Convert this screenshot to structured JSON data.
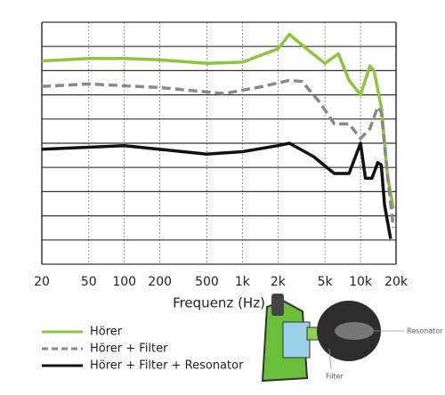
{
  "chart_data": {
    "type": "line",
    "x_label": "Frequenz (Hz)",
    "log_x": true,
    "xlim": [
      20,
      20000
    ],
    "xticks": [
      20,
      50,
      100,
      200,
      500,
      {
        "value": 1000,
        "label": "1k"
      },
      {
        "value": 2000,
        "label": "2k"
      },
      {
        "value": 5000,
        "label": "5k"
      },
      {
        "value": 10000,
        "label": "10k"
      },
      {
        "value": 20000,
        "label": "20k"
      }
    ],
    "ylim": [
      0,
      10
    ],
    "ygrid": [
      0,
      1,
      2,
      3,
      4,
      5,
      6,
      7,
      8,
      9,
      10
    ],
    "series": [
      {
        "name": "Hörer",
        "color": "#8cc63f",
        "dash": false,
        "x": [
          20,
          50,
          100,
          200,
          500,
          1000,
          2000,
          2500,
          3500,
          5000,
          6500,
          8000,
          10000,
          12000,
          13000,
          15000,
          17000,
          19000
        ],
        "values": [
          8.4,
          8.5,
          8.5,
          8.45,
          8.3,
          8.35,
          8.9,
          9.5,
          8.9,
          8.3,
          8.7,
          7.6,
          7.0,
          8.2,
          8.0,
          6.5,
          3.6,
          2.3
        ]
      },
      {
        "name": "Hörer + Filter",
        "color": "#8a8a8a",
        "dash": true,
        "x": [
          20,
          50,
          200,
          700,
          1500,
          2500,
          3200,
          4500,
          6000,
          8000,
          10000,
          12000,
          14000,
          15000,
          17000,
          19000
        ],
        "values": [
          7.35,
          7.45,
          7.3,
          7.05,
          7.35,
          7.6,
          7.55,
          6.7,
          5.8,
          5.8,
          5.2,
          5.6,
          6.5,
          6.3,
          3.6,
          1.5
        ]
      },
      {
        "name": "Hörer + Filter + Resonator",
        "color": "#111111",
        "dash": false,
        "x": [
          20,
          100,
          500,
          1000,
          2000,
          2500,
          4000,
          6000,
          8000,
          10000,
          11000,
          12500,
          14000,
          15000,
          16000,
          18000
        ],
        "values": [
          4.75,
          4.9,
          4.55,
          4.65,
          4.9,
          5.0,
          4.45,
          3.75,
          3.75,
          5.0,
          3.55,
          3.55,
          4.2,
          4.1,
          2.45,
          1.05
        ]
      }
    ],
    "annotations": [
      "Resonator",
      "Filter"
    ]
  }
}
